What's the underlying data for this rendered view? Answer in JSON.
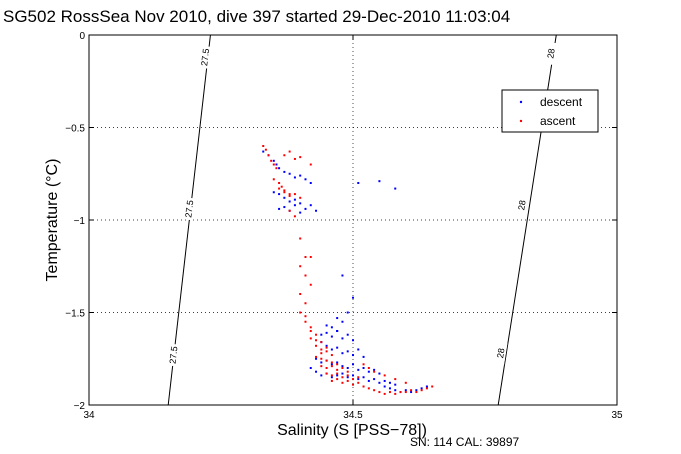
{
  "chart_data": {
    "type": "scatter",
    "title": "SG502 RossSea Nov 2010, dive 397 started 29-Dec-2010 11:03:04",
    "xlabel": "Salinity (S [PSS−78])",
    "ylabel": "Temperature (°C)",
    "xlim": [
      34,
      35
    ],
    "ylim": [
      -2,
      0
    ],
    "x_ticks": [
      34,
      34.5,
      35
    ],
    "x_tick_labels": [
      "34",
      "34.5",
      "35"
    ],
    "y_ticks": [
      -2,
      -1.5,
      -1,
      -0.5,
      0
    ],
    "y_tick_labels": [
      "−2",
      "−1.5",
      "−1",
      "−0.5",
      "0"
    ],
    "grid": true,
    "legend_position": "top-right",
    "footer": "SN: 114  CAL: 39897",
    "colors": {
      "descent": "#0000ff",
      "ascent": "#ff0000",
      "axes": "#000000"
    },
    "contours": [
      {
        "label": "27.5",
        "points": [
          [
            34.23,
            0
          ],
          [
            34.15,
            -2
          ]
        ],
        "label_positions": [
          [
            34.22,
            -0.12
          ],
          [
            34.19,
            -0.94
          ],
          [
            34.16,
            -1.73
          ]
        ]
      },
      {
        "label": "28",
        "points": [
          [
            34.885,
            0
          ],
          [
            34.775,
            -2
          ]
        ],
        "label_positions": [
          [
            34.875,
            -0.1
          ],
          [
            34.82,
            -0.92
          ],
          [
            34.78,
            -1.72
          ]
        ]
      }
    ],
    "series": [
      {
        "name": "descent",
        "x": [
          34.33,
          34.34,
          34.35,
          34.355,
          34.36,
          34.37,
          34.38,
          34.39,
          34.4,
          34.41,
          34.42,
          34.35,
          34.36,
          34.37,
          34.38,
          34.39,
          34.4,
          34.42,
          34.36,
          34.37,
          34.38,
          34.39,
          34.4,
          34.41,
          34.43,
          34.51,
          34.55,
          34.58,
          34.48,
          34.5,
          34.49,
          34.47,
          34.48,
          34.45,
          34.46,
          34.47,
          34.44,
          34.45,
          34.46,
          34.47,
          34.48,
          34.49,
          34.5,
          34.44,
          34.45,
          34.46,
          34.47,
          34.48,
          34.49,
          34.5,
          34.51,
          34.52,
          34.43,
          34.44,
          34.45,
          34.46,
          34.47,
          34.48,
          34.49,
          34.5,
          34.51,
          34.52,
          34.53,
          34.54,
          34.55,
          34.42,
          34.43,
          34.44,
          34.45,
          34.46,
          34.47,
          34.48,
          34.49,
          34.5,
          34.51,
          34.52,
          34.53,
          34.54,
          34.55,
          34.56,
          34.57,
          34.58,
          34.59,
          34.6,
          34.61,
          34.62,
          34.63,
          34.64,
          34.56,
          34.57,
          34.58
        ],
        "y": [
          -0.63,
          -0.65,
          -0.68,
          -0.7,
          -0.72,
          -0.74,
          -0.75,
          -0.77,
          -0.76,
          -0.78,
          -0.8,
          -0.85,
          -0.86,
          -0.88,
          -0.9,
          -0.89,
          -0.91,
          -0.92,
          -0.94,
          -0.93,
          -0.95,
          -0.92,
          -0.96,
          -0.94,
          -0.95,
          -0.8,
          -0.79,
          -0.83,
          -1.3,
          -1.42,
          -1.5,
          -1.53,
          -1.55,
          -1.57,
          -1.58,
          -1.6,
          -1.62,
          -1.61,
          -1.63,
          -1.6,
          -1.64,
          -1.62,
          -1.65,
          -1.66,
          -1.68,
          -1.7,
          -1.69,
          -1.72,
          -1.71,
          -1.73,
          -1.7,
          -1.74,
          -1.75,
          -1.77,
          -1.76,
          -1.78,
          -1.77,
          -1.79,
          -1.8,
          -1.78,
          -1.81,
          -1.8,
          -1.82,
          -1.81,
          -1.83,
          -1.8,
          -1.82,
          -1.84,
          -1.83,
          -1.85,
          -1.84,
          -1.83,
          -1.85,
          -1.84,
          -1.86,
          -1.85,
          -1.87,
          -1.86,
          -1.88,
          -1.9,
          -1.91,
          -1.92,
          -1.93,
          -1.92,
          -1.93,
          -1.92,
          -1.91,
          -1.9,
          -1.87,
          -1.88,
          -1.89
        ]
      },
      {
        "name": "ascent",
        "x": [
          34.33,
          34.335,
          34.34,
          34.345,
          34.35,
          34.355,
          34.35,
          34.36,
          34.365,
          34.37,
          34.38,
          34.36,
          34.37,
          34.38,
          34.39,
          34.4,
          34.37,
          34.38,
          34.39,
          34.4,
          34.42,
          34.38,
          34.39,
          34.4,
          34.41,
          34.42,
          34.4,
          34.41,
          34.42,
          34.4,
          34.41,
          34.4,
          34.41,
          34.41,
          34.42,
          34.42,
          34.43,
          34.42,
          34.43,
          34.44,
          34.43,
          34.44,
          34.45,
          34.44,
          34.45,
          34.46,
          34.43,
          34.44,
          34.45,
          34.46,
          34.47,
          34.44,
          34.45,
          34.46,
          34.47,
          34.48,
          34.49,
          34.45,
          34.46,
          34.47,
          34.48,
          34.49,
          34.5,
          34.51,
          34.46,
          34.47,
          34.48,
          34.49,
          34.5,
          34.51,
          34.52,
          34.53,
          34.54,
          34.55,
          34.56,
          34.57,
          34.58,
          34.59,
          34.6,
          34.61,
          34.62,
          34.63,
          34.64,
          34.65,
          34.52,
          34.53,
          34.54,
          34.56,
          34.58,
          34.6
        ],
        "y": [
          -0.6,
          -0.62,
          -0.65,
          -0.68,
          -0.7,
          -0.72,
          -0.78,
          -0.8,
          -0.82,
          -0.84,
          -0.86,
          -0.83,
          -0.85,
          -0.87,
          -0.86,
          -0.88,
          -0.65,
          -0.63,
          -0.67,
          -0.66,
          -0.7,
          -0.95,
          -0.98,
          -1.1,
          -1.2,
          -1.2,
          -1.25,
          -1.3,
          -1.35,
          -1.4,
          -1.45,
          -1.5,
          -1.52,
          -1.55,
          -1.58,
          -1.6,
          -1.62,
          -1.64,
          -1.65,
          -1.66,
          -1.68,
          -1.7,
          -1.69,
          -1.72,
          -1.71,
          -1.73,
          -1.74,
          -1.75,
          -1.76,
          -1.77,
          -1.78,
          -1.79,
          -1.8,
          -1.79,
          -1.81,
          -1.8,
          -1.82,
          -1.83,
          -1.84,
          -1.83,
          -1.85,
          -1.84,
          -1.86,
          -1.85,
          -1.87,
          -1.86,
          -1.88,
          -1.87,
          -1.89,
          -1.88,
          -1.9,
          -1.91,
          -1.92,
          -1.93,
          -1.94,
          -1.93,
          -1.94,
          -1.93,
          -1.93,
          -1.92,
          -1.93,
          -1.92,
          -1.91,
          -1.9,
          -1.78,
          -1.8,
          -1.82,
          -1.84,
          -1.86,
          -1.88
        ]
      }
    ]
  }
}
